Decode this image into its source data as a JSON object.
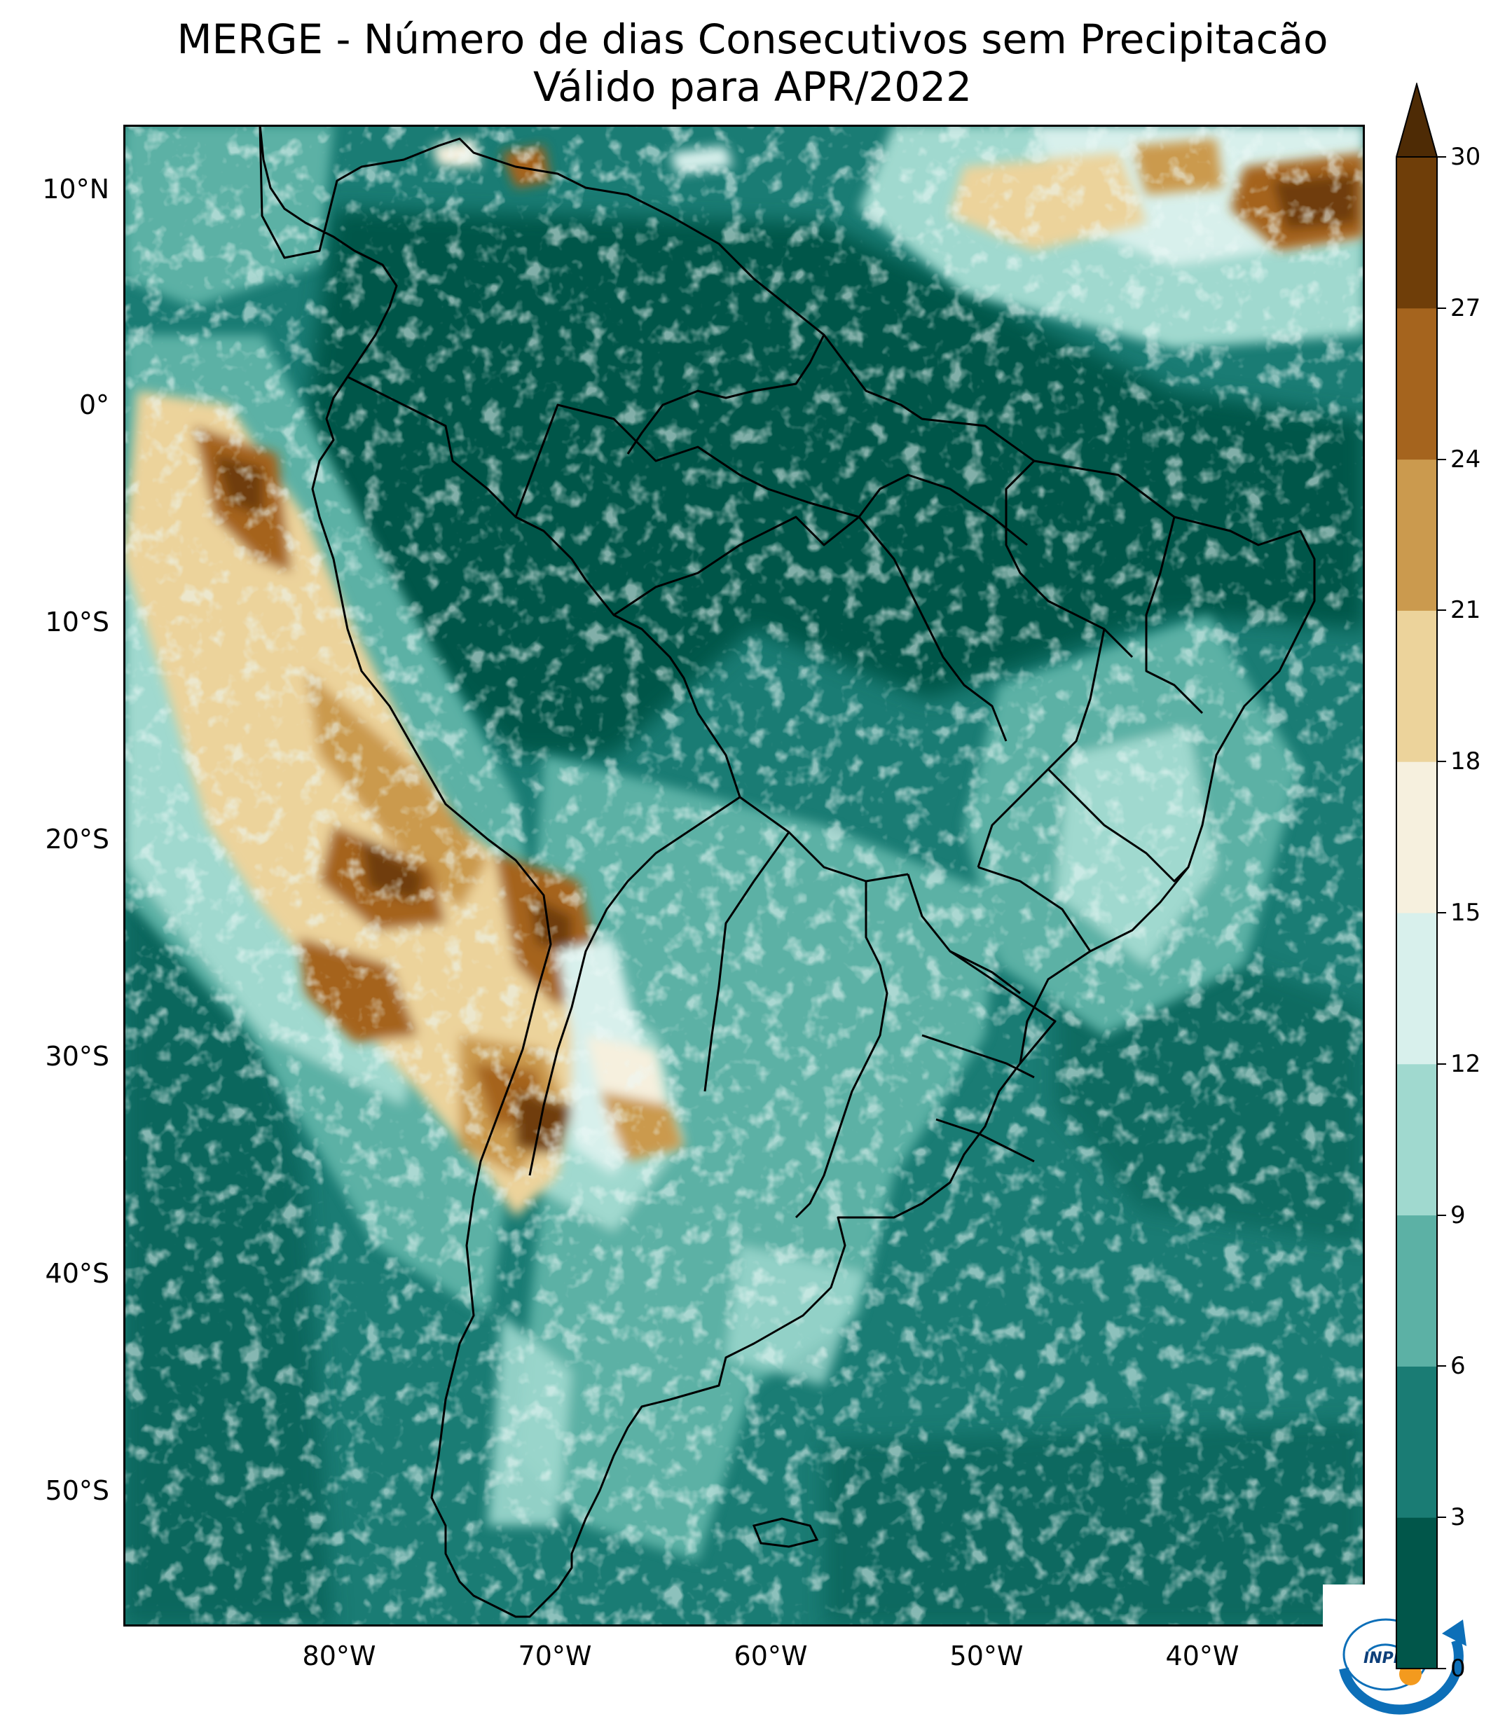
{
  "title": {
    "line1": "MERGE - Número de dias Consecutivos sem Precipitacão",
    "line2": "Válido para APR/2022"
  },
  "axes": {
    "y_labels": [
      "10°N",
      "0°",
      "10°S",
      "20°S",
      "30°S",
      "40°S",
      "50°S"
    ],
    "x_labels": [
      "80°W",
      "70°W",
      "60°W",
      "50°W",
      "40°W"
    ]
  },
  "colorbar": {
    "ticks": [
      "0",
      "3",
      "6",
      "9",
      "12",
      "15",
      "18",
      "21",
      "24",
      "27",
      "30"
    ],
    "colors": [
      "#01564a",
      "#1a7c74",
      "#5cb1a5",
      "#a0d9cf",
      "#d8f0ec",
      "#f6f0de",
      "#ecd39b",
      "#cb9a4e",
      "#a5641e",
      "#6f3e09"
    ],
    "extend": "max"
  },
  "logo": {
    "text": "INPE",
    "icon": "inpe-logo"
  },
  "map": {
    "region": "South America",
    "variable": "consecutive dry days",
    "period": "APR/2022"
  }
}
